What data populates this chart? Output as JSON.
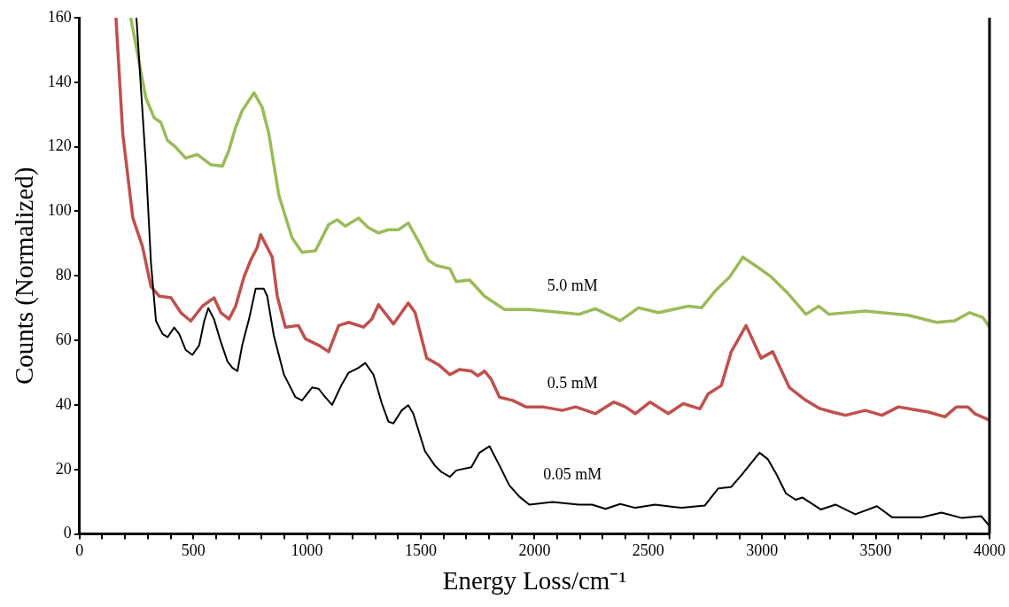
{
  "chart_data": {
    "type": "line",
    "xlabel": "Energy Loss/cm⁻¹",
    "ylabel": "Counts (Normalized)",
    "xlim": [
      0,
      4000
    ],
    "ylim": [
      0,
      160
    ],
    "xticks": [
      0,
      {
        "value": 100,
        "label": null
      },
      {
        "value": 200,
        "label": null
      },
      {
        "value": 300,
        "label": null
      },
      {
        "value": 400,
        "label": null
      },
      500,
      {
        "value": 600,
        "label": null
      },
      {
        "value": 700,
        "label": null
      },
      {
        "value": 800,
        "label": null
      },
      {
        "value": 900,
        "label": null
      },
      1000,
      {
        "value": 1100,
        "label": null
      },
      {
        "value": 1200,
        "label": null
      },
      {
        "value": 1300,
        "label": null
      },
      {
        "value": 1400,
        "label": null
      },
      1500,
      {
        "value": 1600,
        "label": null
      },
      {
        "value": 1700,
        "label": null
      },
      {
        "value": 1800,
        "label": null
      },
      {
        "value": 1900,
        "label": null
      },
      2000,
      {
        "value": 2100,
        "label": null
      },
      {
        "value": 2200,
        "label": null
      },
      {
        "value": 2300,
        "label": null
      },
      {
        "value": 2400,
        "label": null
      },
      2500,
      {
        "value": 2600,
        "label": null
      },
      {
        "value": 2700,
        "label": null
      },
      {
        "value": 2800,
        "label": null
      },
      {
        "value": 2900,
        "label": null
      },
      3000,
      {
        "value": 3100,
        "label": null
      },
      {
        "value": 3200,
        "label": null
      },
      {
        "value": 3300,
        "label": null
      },
      {
        "value": 3400,
        "label": null
      },
      3500,
      {
        "value": 3600,
        "label": null
      },
      {
        "value": 3700,
        "label": null
      },
      {
        "value": 3800,
        "label": null
      },
      {
        "value": 3900,
        "label": null
      },
      4000
    ],
    "yticks": [
      0,
      20,
      40,
      60,
      80,
      100,
      120,
      140,
      160
    ],
    "grid": false,
    "legend": false,
    "marker": "none",
    "line_style": "solid",
    "series": [
      {
        "name": "0.05 mM",
        "color": "#000000",
        "x": [
          250,
          292,
          314,
          336,
          365,
          387,
          416,
          438,
          467,
          496,
          526,
          548,
          566,
          591,
          621,
          650,
          672,
          694,
          715,
          745,
          774,
          810,
          825,
          854,
          898,
          949,
          978,
          1022,
          1051,
          1080,
          1110,
          1153,
          1183,
          1226,
          1256,
          1292,
          1329,
          1358,
          1380,
          1416,
          1445,
          1467,
          1518,
          1562,
          1591,
          1628,
          1656,
          1722,
          1758,
          1802,
          1846,
          1889,
          1933,
          1977,
          2079,
          2195,
          2253,
          2312,
          2377,
          2443,
          2530,
          2647,
          2748,
          2807,
          2865,
          2909,
          2989,
          3025,
          3062,
          3105,
          3148,
          3177,
          3258,
          3323,
          3410,
          3505,
          3571,
          3702,
          3789,
          3876,
          3964,
          4000
        ],
        "values": [
          160,
          114,
          84,
          66,
          62,
          61,
          64,
          62,
          57,
          55.5,
          58.5,
          66,
          70,
          66.6,
          59.5,
          53.5,
          51.5,
          50.5,
          58.5,
          66.6,
          76,
          76,
          73.7,
          61.5,
          49.5,
          42.4,
          41.4,
          45.4,
          45,
          42.4,
          40,
          46.4,
          50,
          51.5,
          53,
          49.4,
          40.4,
          34.8,
          34.3,
          38.3,
          39.9,
          37.3,
          25.7,
          21.2,
          19.2,
          17.7,
          19.7,
          20.7,
          25.2,
          27.2,
          21.2,
          15.1,
          11.6,
          9.1,
          9.9,
          9.1,
          9.1,
          7.8,
          9.3,
          8.1,
          9.1,
          8.1,
          8.8,
          14.1,
          14.6,
          18.2,
          25.2,
          23.2,
          18.7,
          12.6,
          10.6,
          11.3,
          7.6,
          9.1,
          6.1,
          8.6,
          5.2,
          5.2,
          6.6,
          5,
          5.5,
          2.5
        ]
      },
      {
        "name": "0.5 mM",
        "color": "#c0504d",
        "x": [
          160,
          190,
          234,
          277,
          314,
          350,
          402,
          445,
          489,
          540,
          591,
          621,
          657,
          686,
          723,
          752,
          781,
          796,
          818,
          847,
          869,
          905,
          962,
          993,
          1051,
          1095,
          1139,
          1183,
          1248,
          1285,
          1314,
          1380,
          1445,
          1475,
          1526,
          1577,
          1628,
          1671,
          1722,
          1751,
          1780,
          1809,
          1846,
          1904,
          1962,
          2035,
          2122,
          2181,
          2268,
          2348,
          2399,
          2443,
          2508,
          2588,
          2654,
          2727,
          2763,
          2821,
          2865,
          2930,
          2996,
          3047,
          3120,
          3193,
          3250,
          3309,
          3367,
          3454,
          3527,
          3600,
          3731,
          3804,
          3855,
          3905,
          3935,
          4000
        ],
        "values": [
          160,
          124,
          98,
          89,
          76.7,
          73.7,
          73.2,
          68.6,
          66,
          70.6,
          73.2,
          68.6,
          66.6,
          70.6,
          79.7,
          84.8,
          88.8,
          92.8,
          89.8,
          85.8,
          73.7,
          64.1,
          64.6,
          60.5,
          58.5,
          56.5,
          64.6,
          65.6,
          64.1,
          66.6,
          71.1,
          65.1,
          71.6,
          68.6,
          54.5,
          52.5,
          49.4,
          51,
          50.5,
          49,
          50.5,
          48,
          42.4,
          41.4,
          39.4,
          39.4,
          38.3,
          39.4,
          37.3,
          40.9,
          39.4,
          37.3,
          40.9,
          37.3,
          40.4,
          38.8,
          43.4,
          46,
          56.5,
          64.6,
          54.5,
          56.5,
          45.4,
          41.4,
          39,
          37.8,
          36.8,
          38.3,
          36.8,
          39.4,
          37.8,
          36.3,
          39.4,
          39.4,
          37.3,
          35.3
        ]
      },
      {
        "name": "5.0 mM",
        "color": "#9bbb59",
        "x": [
          225,
          292,
          328,
          357,
          386,
          421,
          466,
          518,
          576,
          628,
          657,
          686,
          715,
          767,
          803,
          832,
          876,
          934,
          978,
          1037,
          1095,
          1132,
          1168,
          1226,
          1270,
          1314,
          1358,
          1402,
          1445,
          1497,
          1533,
          1570,
          1628,
          1656,
          1715,
          1780,
          1868,
          1977,
          2122,
          2195,
          2268,
          2377,
          2457,
          2545,
          2676,
          2734,
          2799,
          2858,
          2916,
          2981,
          3040,
          3112,
          3193,
          3250,
          3294,
          3454,
          3643,
          3767,
          3847,
          3913,
          3971,
          4000
        ],
        "values": [
          160,
          135,
          129,
          127.6,
          122,
          120,
          116.5,
          117.6,
          114.5,
          114,
          119,
          126,
          131.2,
          136.7,
          132.2,
          124.1,
          105,
          91.8,
          87.3,
          87.8,
          95.9,
          97.4,
          95.4,
          97.9,
          94.9,
          93.3,
          94.3,
          94.3,
          96.4,
          89.8,
          84.8,
          83.2,
          82.2,
          78.2,
          78.7,
          73.7,
          69.6,
          69.6,
          68.6,
          68.1,
          69.8,
          66.1,
          70.1,
          68.6,
          70.6,
          70.1,
          75.7,
          79.7,
          85.8,
          82.7,
          79.7,
          74.7,
          68.1,
          70.6,
          68.1,
          69.1,
          67.8,
          65.6,
          66.1,
          68.6,
          67.1,
          64.1
        ]
      }
    ]
  }
}
